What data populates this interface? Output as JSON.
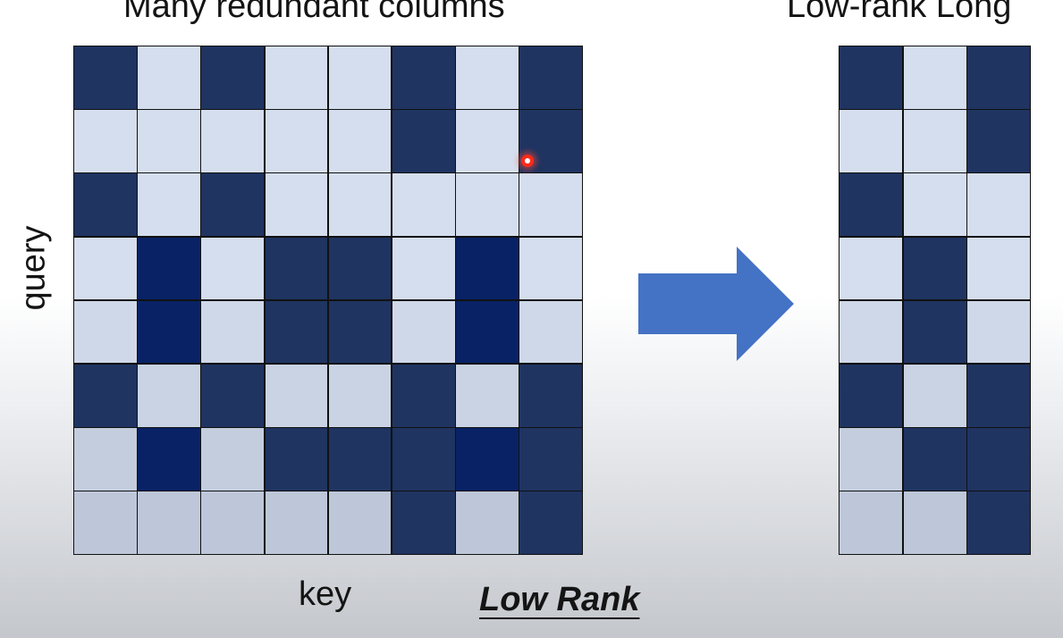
{
  "title": "Many redundant columns",
  "title_right": "Low-rank Long",
  "xlabel": "key",
  "ylabel": "query",
  "caption": "Low Rank",
  "colors": {
    "light": "#d5deee",
    "dark": "#1f3461",
    "darkest": "#082265",
    "arrow": "#4472c4",
    "cursor": "#ff2a1a"
  },
  "main_matrix": [
    [
      "D",
      "L",
      "D",
      "L",
      "L",
      "D",
      "L",
      "D"
    ],
    [
      "L",
      "L",
      "L",
      "L",
      "L",
      "D",
      "L",
      "D"
    ],
    [
      "D",
      "L",
      "D",
      "L",
      "L",
      "L",
      "L",
      "L"
    ],
    [
      "L",
      "X",
      "L",
      "D",
      "D",
      "L",
      "X",
      "L"
    ],
    [
      "L",
      "X",
      "L",
      "D",
      "D",
      "L",
      "X",
      "L"
    ],
    [
      "D",
      "L",
      "D",
      "L",
      "L",
      "D",
      "L",
      "D"
    ],
    [
      "L",
      "X",
      "L",
      "D",
      "D",
      "D",
      "X",
      "D"
    ],
    [
      "L",
      "L",
      "L",
      "L",
      "L",
      "D",
      "L",
      "D"
    ]
  ],
  "reduced_matrix": [
    [
      "D",
      "L",
      "D"
    ],
    [
      "L",
      "L",
      "D"
    ],
    [
      "D",
      "L",
      "L"
    ],
    [
      "L",
      "D",
      "L"
    ],
    [
      "L",
      "D",
      "L"
    ],
    [
      "D",
      "L",
      "D"
    ],
    [
      "L",
      "D",
      "D"
    ],
    [
      "L",
      "L",
      "D"
    ]
  ]
}
